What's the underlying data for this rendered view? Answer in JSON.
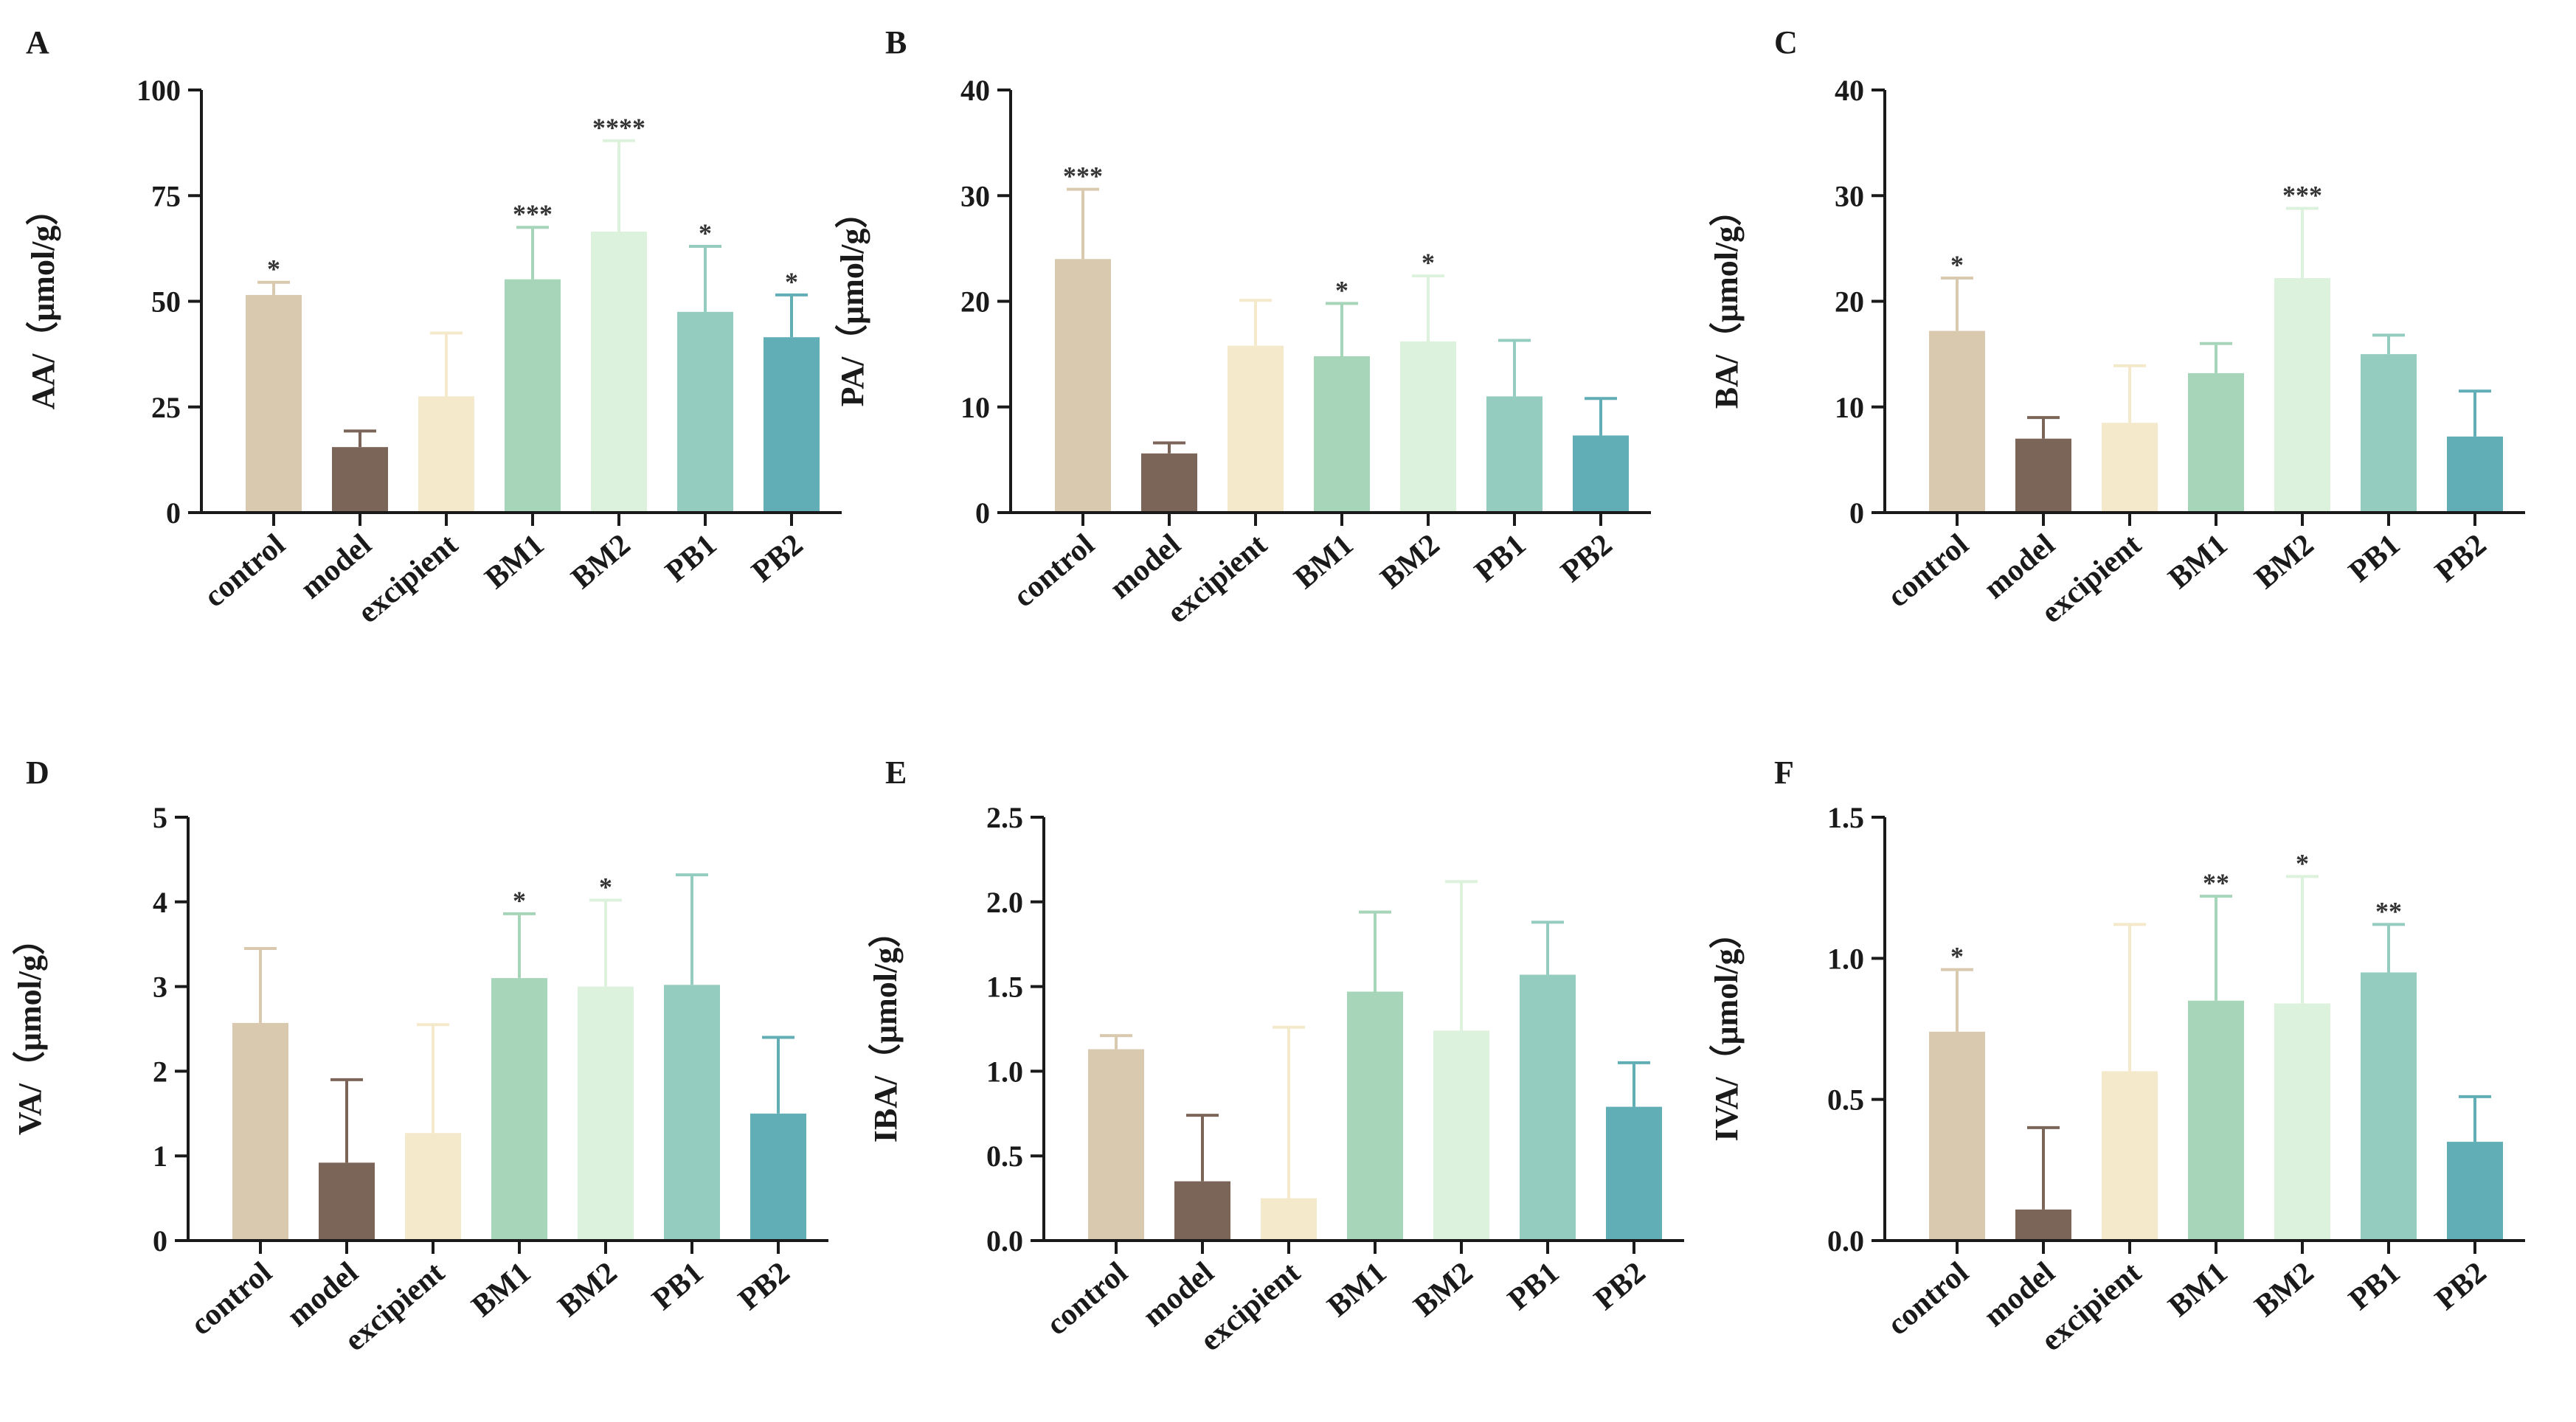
{
  "chart_data": [
    {
      "type": "bar",
      "panel": "A",
      "ylabel": "AA/（μmol/g）",
      "ylim": [
        0,
        100
      ],
      "yticks": [
        "0",
        "25",
        "50",
        "75",
        "100"
      ],
      "categories": [
        "control",
        "model",
        "excipient",
        "BM1",
        "BM2",
        "PB1",
        "PB2"
      ],
      "values": [
        51.5,
        15.5,
        27.5,
        55.2,
        66.5,
        47.5,
        41.5
      ],
      "errors": [
        3.0,
        3.8,
        15.0,
        12.3,
        21.5,
        15.5,
        10.0
      ],
      "significance": [
        "*",
        "",
        "",
        "***",
        "****",
        "*",
        "*"
      ]
    },
    {
      "type": "bar",
      "panel": "B",
      "ylabel": "PA/（μmol/g）",
      "ylim": [
        0,
        40
      ],
      "yticks": [
        "0",
        "10",
        "20",
        "30",
        "40"
      ],
      "categories": [
        "control",
        "model",
        "excipient",
        "BM1",
        "BM2",
        "PB1",
        "PB2"
      ],
      "values": [
        24.0,
        5.6,
        15.8,
        14.8,
        16.2,
        11.0,
        7.3
      ],
      "errors": [
        6.6,
        1.0,
        4.3,
        5.0,
        6.2,
        5.3,
        3.5
      ],
      "significance": [
        "***",
        "",
        "",
        "*",
        "*",
        "",
        ""
      ]
    },
    {
      "type": "bar",
      "panel": "C",
      "ylabel": "BA/（μmol/g）",
      "ylim": [
        0,
        40
      ],
      "yticks": [
        "0",
        "10",
        "20",
        "30",
        "40"
      ],
      "categories": [
        "control",
        "model",
        "excipient",
        "BM1",
        "BM2",
        "PB1",
        "PB2"
      ],
      "values": [
        17.2,
        7.0,
        8.5,
        13.2,
        22.2,
        15.0,
        7.2
      ],
      "errors": [
        5.0,
        2.0,
        5.4,
        2.8,
        6.6,
        1.8,
        4.3
      ],
      "significance": [
        "*",
        "",
        "",
        "",
        "***",
        "",
        ""
      ]
    },
    {
      "type": "bar",
      "panel": "D",
      "ylabel": "VA/（μmol/g）",
      "ylim": [
        0,
        5
      ],
      "yticks": [
        "0",
        "1",
        "2",
        "3",
        "4",
        "5"
      ],
      "categories": [
        "control",
        "model",
        "excipient",
        "BM1",
        "BM2",
        "PB1",
        "PB2"
      ],
      "values": [
        2.57,
        0.92,
        1.27,
        3.1,
        3.0,
        3.02,
        1.5
      ],
      "errors": [
        0.88,
        0.98,
        1.28,
        0.76,
        1.02,
        1.3,
        0.9
      ],
      "significance": [
        "",
        "",
        "",
        "*",
        "*",
        "",
        ""
      ]
    },
    {
      "type": "bar",
      "panel": "E",
      "ylabel": "IBA/（μmol/g）",
      "ylim": [
        0,
        2.5
      ],
      "yticks": [
        "0.0",
        "0.5",
        "1.0",
        "1.5",
        "2.0",
        "2.5"
      ],
      "categories": [
        "control",
        "model",
        "excipient",
        "BM1",
        "BM2",
        "PB1",
        "PB2"
      ],
      "values": [
        1.13,
        0.35,
        0.25,
        1.47,
        1.24,
        1.57,
        0.79
      ],
      "errors": [
        0.08,
        0.39,
        1.01,
        0.47,
        0.88,
        0.31,
        0.26
      ],
      "significance": [
        "",
        "",
        "",
        "",
        "",
        "",
        ""
      ]
    },
    {
      "type": "bar",
      "panel": "F",
      "ylabel": "IVA/（μmol/g）",
      "ylim": [
        0,
        1.5
      ],
      "yticks": [
        "0.0",
        "0.5",
        "1.0",
        "1.5"
      ],
      "categories": [
        "control",
        "model",
        "excipient",
        "BM1",
        "BM2",
        "PB1",
        "PB2"
      ],
      "values": [
        0.74,
        0.11,
        0.6,
        0.85,
        0.84,
        0.95,
        0.35
      ],
      "errors": [
        0.22,
        0.29,
        0.52,
        0.37,
        0.45,
        0.17,
        0.16
      ],
      "significance": [
        "*",
        "",
        "",
        "**",
        "*",
        "**",
        ""
      ]
    }
  ],
  "bar_colors": [
    "#d9c9ae",
    "#7b6558",
    "#f4e9cb",
    "#a6d5b9",
    "#ddf2dc",
    "#94cdc0",
    "#62aeb6"
  ],
  "axis_color": "#1a1a1a"
}
